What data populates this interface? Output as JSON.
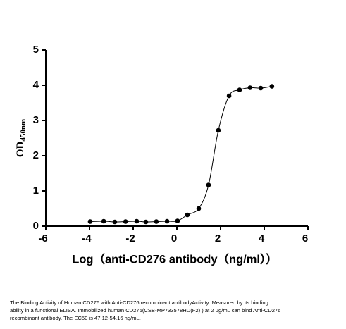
{
  "chart_data": {
    "type": "scatter",
    "xlabel": "Log（anti-CD276 antibody（ng/ml））",
    "ylabel": {
      "main": "OD",
      "sub": "450nm"
    },
    "x": [
      -3.97,
      -3.35,
      -2.84,
      -2.35,
      -1.84,
      -1.42,
      -0.94,
      -0.45,
      0.03,
      0.48,
      1.0,
      1.45,
      1.9,
      2.39,
      2.87,
      3.35,
      3.84,
      4.35
    ],
    "values": [
      0.13,
      0.14,
      0.12,
      0.13,
      0.14,
      0.12,
      0.13,
      0.14,
      0.15,
      0.32,
      0.5,
      1.17,
      2.72,
      3.7,
      3.87,
      3.93,
      3.92,
      3.97
    ],
    "color": "#000000",
    "fit_line": true,
    "xlim": [
      -6,
      6
    ],
    "xticks": [
      -6,
      -4,
      -2,
      0,
      2,
      4,
      6
    ],
    "ylim": [
      0,
      5
    ],
    "yticks": [
      0,
      1,
      2,
      3,
      4,
      5
    ]
  },
  "caption": [
    "The Binding Activity of Human CD276 with Anti-CD276 recombinant antibodyActivity: Measured by its binding",
    "ability in a functional ELISA. Immobilized human CD276(CSB-MP733578HU(F2) ) at 2 μg/mL can bind Anti-CD276",
    "recombinant antibody. The EC50 is 47.12-54.16 ng/mL."
  ]
}
